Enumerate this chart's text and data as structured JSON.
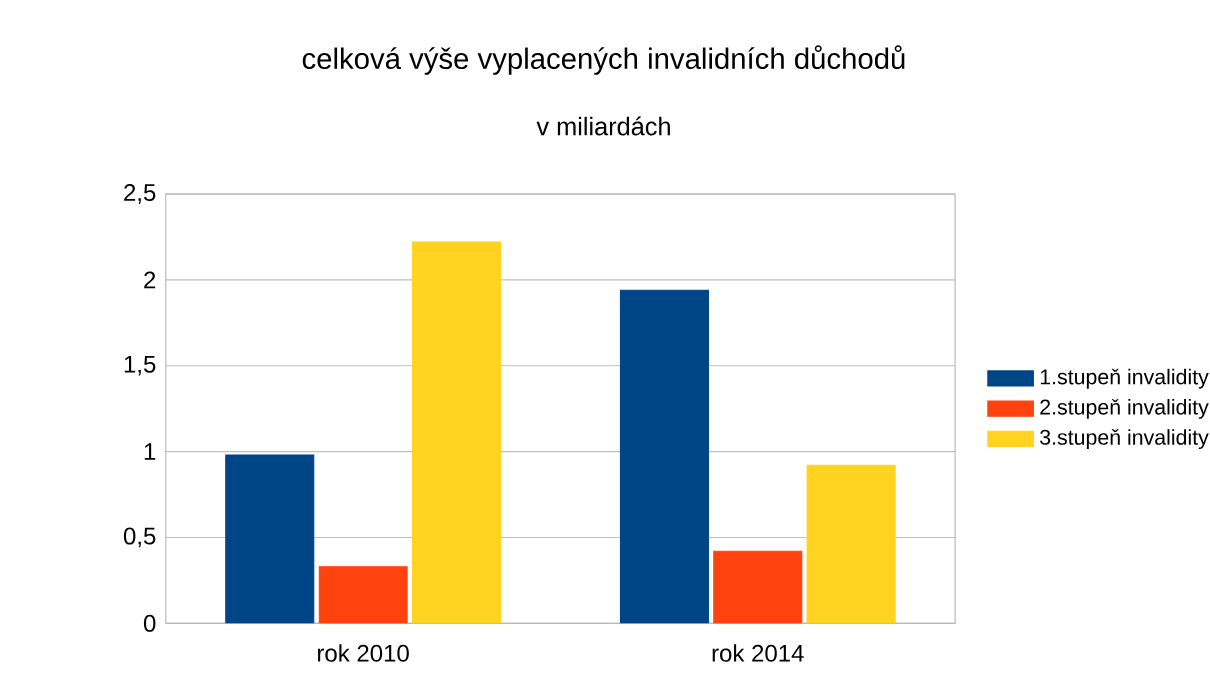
{
  "chart_data": {
    "type": "bar",
    "title": "celková výše vyplacených invalidních důchodů",
    "subtitle": "v miliardách",
    "categories": [
      "rok 2010",
      "rok 2014"
    ],
    "series": [
      {
        "name": "1.stupeň invalidity",
        "color": "#004586",
        "values": [
          0.98,
          1.94
        ]
      },
      {
        "name": "2.stupeň invalidity",
        "color": "#ff420e",
        "values": [
          0.33,
          0.42
        ]
      },
      {
        "name": "3.stupeň invalidity",
        "color": "#ffd320",
        "values": [
          2.22,
          0.92
        ]
      }
    ],
    "ylim": [
      0,
      2.5
    ],
    "yticks": [
      0,
      {
        "value": 0.5,
        "label": "0,5"
      },
      1,
      {
        "value": 1.5,
        "label": "1,5"
      },
      2,
      {
        "value": 2.5,
        "label": "2,5"
      }
    ],
    "grid": "y",
    "legend": "right"
  }
}
